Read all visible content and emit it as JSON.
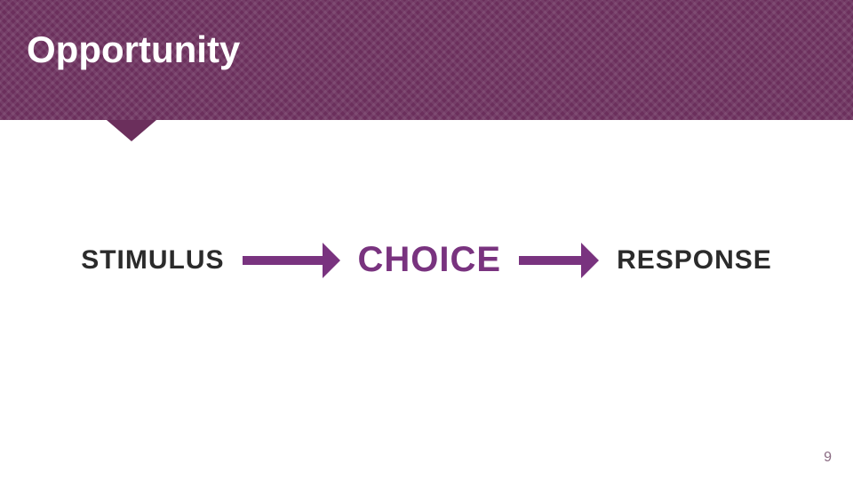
{
  "header": {
    "title": "Opportunity",
    "title_fontsize": 42,
    "title_color": "#ffffff",
    "background_color": "#6b2f5c",
    "notch_color": "#6b2f5c",
    "notch_height": 24
  },
  "flow": {
    "node1": {
      "text": "STIMULUS",
      "color": "#2b2b2b",
      "fontsize": 30
    },
    "arrow1": {
      "color": "#79337f",
      "length": 110,
      "thickness": 10,
      "head": 20
    },
    "node2": {
      "text": "CHOICE",
      "color": "#79337f",
      "fontsize": 40
    },
    "arrow2": {
      "color": "#79337f",
      "length": 90,
      "thickness": 10,
      "head": 20
    },
    "node3": {
      "text": "RESPONSE",
      "color": "#2b2b2b",
      "fontsize": 30
    }
  },
  "pagenum": {
    "text": "9",
    "color": "#8a6b82",
    "fontsize": 16
  }
}
